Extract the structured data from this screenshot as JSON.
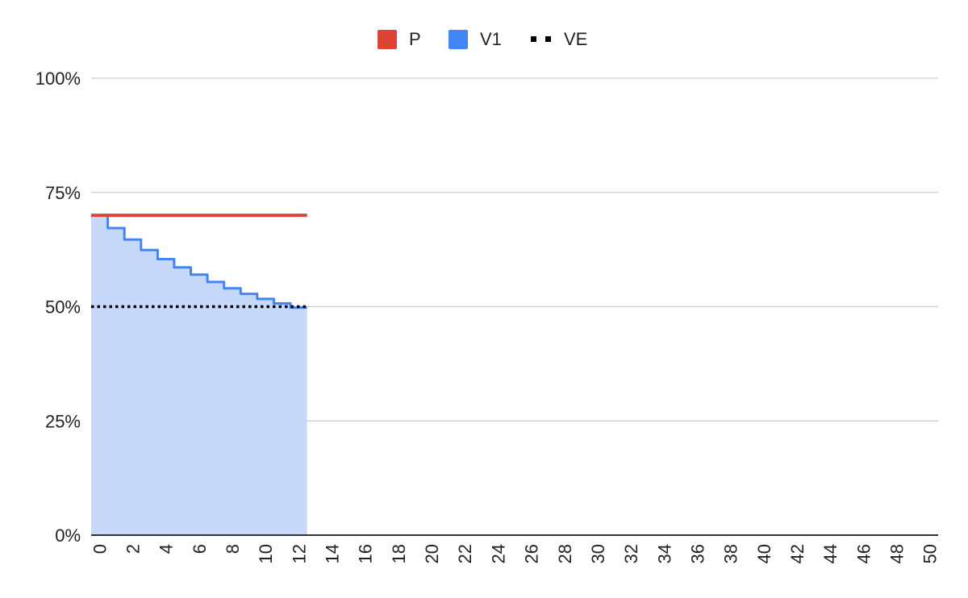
{
  "chart_data": {
    "type": "area",
    "x_ticks": [
      "0",
      "2",
      "4",
      "6",
      "8",
      "10",
      "12",
      "14",
      "16",
      "18",
      "20",
      "22",
      "24",
      "26",
      "28",
      "30",
      "32",
      "34",
      "36",
      "38",
      "40",
      "42",
      "44",
      "46",
      "48",
      "50"
    ],
    "y_ticks": [
      "0%",
      "25%",
      "50%",
      "75%",
      "100%"
    ],
    "xlim": [
      -0.5,
      50.5
    ],
    "ylim": [
      0,
      100
    ],
    "grid": true,
    "legend_position": "top",
    "series": [
      {
        "name": "P",
        "kind": "line",
        "color": "#db4437",
        "x": [
          -0.5,
          12.5
        ],
        "y": [
          70,
          70
        ]
      },
      {
        "name": "V1",
        "kind": "area-step",
        "color": "#4285f4",
        "fill": "#c6d9fa",
        "x": [
          -0.5,
          0.5,
          1.5,
          2.5,
          3.5,
          4.5,
          5.5,
          6.5,
          7.5,
          8.5,
          9.5,
          10.5,
          11.5,
          12.5
        ],
        "y": [
          70,
          67.2,
          64.7,
          62.4,
          60.4,
          58.6,
          57,
          55.4,
          54,
          52.8,
          51.7,
          50.7,
          49.8,
          49.8
        ]
      },
      {
        "name": "VE",
        "kind": "dotted-line",
        "color": "#000000",
        "x": [
          -0.5,
          12.5
        ],
        "y": [
          50,
          50
        ]
      }
    ]
  },
  "legend": [
    {
      "label": "P",
      "color": "#db4437",
      "marker": "square"
    },
    {
      "label": "V1",
      "color": "#4285f4",
      "marker": "square"
    },
    {
      "label": "VE",
      "color": "#000000",
      "marker": "dots"
    }
  ]
}
